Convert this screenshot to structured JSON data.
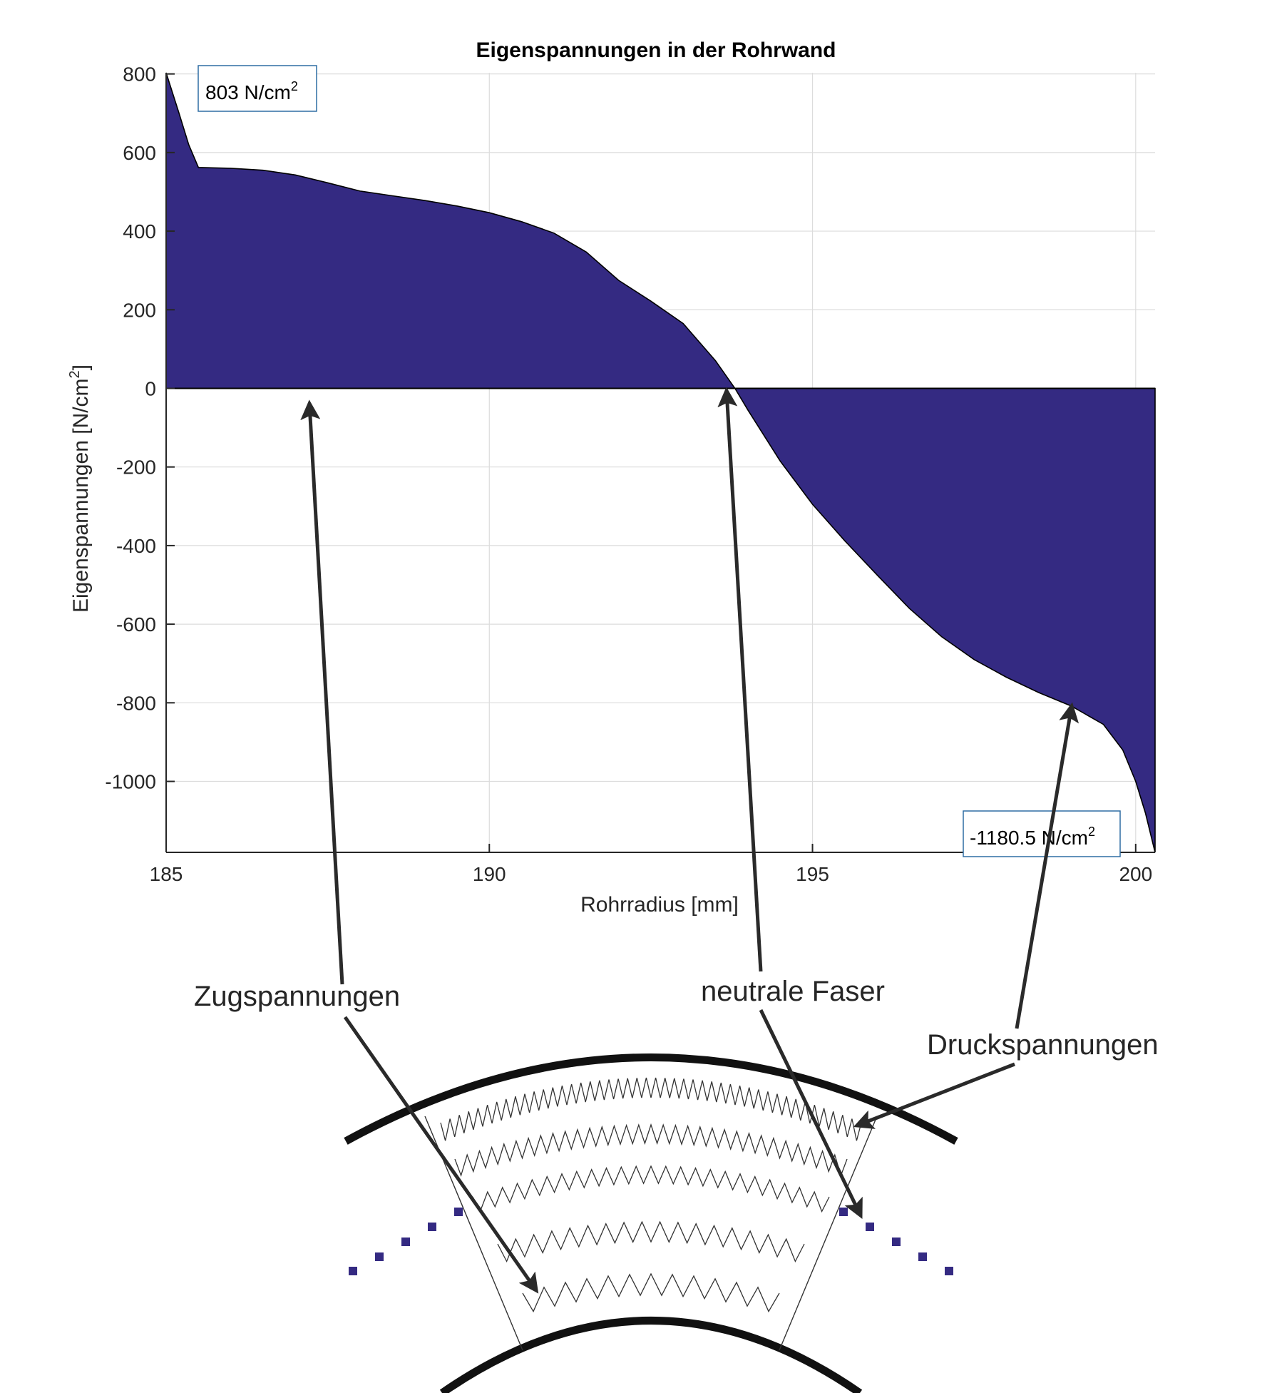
{
  "chart_data": {
    "type": "area",
    "title": "Eigenspannungen in der Rohrwand",
    "xlabel": "Rohrradius [mm]",
    "ylabel_main": "Eigenspannungen [N/cm",
    "ylabel_sup": "2",
    "ylabel_tail": "]",
    "xlim": [
      185,
      200.3
    ],
    "ylim": [
      -1180.5,
      803
    ],
    "xticks": [
      185,
      190,
      195,
      200
    ],
    "xtick_labels": [
      "185",
      "190",
      "195",
      "200"
    ],
    "yticks": [
      800,
      600,
      400,
      200,
      0,
      -200,
      -400,
      -600,
      -800,
      -1000
    ],
    "ytick_labels": [
      "800",
      "600",
      "400",
      "200",
      "0",
      "-200",
      "-400",
      "-600",
      "-800",
      "-1000"
    ],
    "grid": true,
    "series": [
      {
        "color": "#342a82",
        "points": [
          [
            185.0,
            803
          ],
          [
            185.2,
            700
          ],
          [
            185.35,
            620
          ],
          [
            185.5,
            562
          ],
          [
            186.0,
            560
          ],
          [
            186.5,
            555
          ],
          [
            187.0,
            543
          ],
          [
            187.5,
            523
          ],
          [
            188.0,
            502
          ],
          [
            188.5,
            490
          ],
          [
            189.0,
            478
          ],
          [
            189.5,
            464
          ],
          [
            190.0,
            447
          ],
          [
            190.5,
            424
          ],
          [
            191.0,
            395
          ],
          [
            191.5,
            347
          ],
          [
            192.0,
            275
          ],
          [
            192.5,
            222
          ],
          [
            193.0,
            165
          ],
          [
            193.5,
            70
          ],
          [
            193.8,
            0
          ],
          [
            194.0,
            -55
          ],
          [
            194.5,
            -185
          ],
          [
            195.0,
            -295
          ],
          [
            195.5,
            -388
          ],
          [
            196.0,
            -475
          ],
          [
            196.5,
            -560
          ],
          [
            197.0,
            -632
          ],
          [
            197.5,
            -690
          ],
          [
            198.0,
            -735
          ],
          [
            198.5,
            -774
          ],
          [
            199.0,
            -808
          ],
          [
            199.5,
            -855
          ],
          [
            199.8,
            -920
          ],
          [
            200.0,
            -1000
          ],
          [
            200.15,
            -1080
          ],
          [
            200.3,
            -1180.5
          ]
        ]
      }
    ],
    "annotations": {
      "max": {
        "value_text": "803 N/cm",
        "sup": "2"
      },
      "min": {
        "value_text": "-1180.5 N/cm",
        "sup": "2"
      }
    }
  },
  "callouts": {
    "tension": "Zugspannungen",
    "neutral": "neutrale Faser",
    "compression": "Druckspannungen"
  },
  "colors": {
    "fill": "#342a82",
    "axis": "#262626",
    "grid": "#dcdcdc",
    "arrow": "#2a2a2a",
    "annotation_border": "#2e6da4"
  },
  "icons": [
    "pipe-wall-cross-section",
    "spring-zigzag",
    "neutral-fiber-dots",
    "callout-arrow"
  ]
}
